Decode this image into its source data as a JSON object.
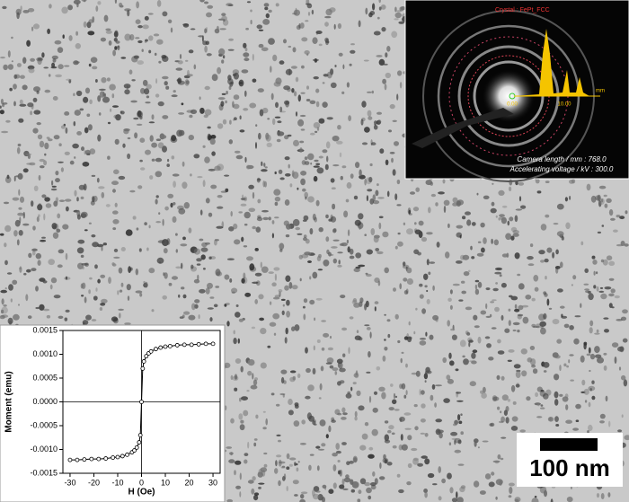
{
  "chart_data": {
    "type": "line",
    "xlabel": "H (Oe)",
    "ylabel": "Moment (emu)",
    "x": [
      -30,
      -27,
      -24,
      -21,
      -18,
      -15,
      -12,
      -10,
      -8,
      -6,
      -4,
      -3,
      -2,
      -1,
      -0.5,
      0,
      0.5,
      1,
      2,
      3,
      4,
      6,
      8,
      10,
      12,
      15,
      18,
      21,
      24,
      27,
      30
    ],
    "values": [
      -0.00122,
      -0.00122,
      -0.00121,
      -0.0012,
      -0.0012,
      -0.00119,
      -0.00117,
      -0.00116,
      -0.00114,
      -0.00111,
      -0.00106,
      -0.00102,
      -0.00096,
      -0.00085,
      -0.0007,
      0,
      0.0007,
      0.00085,
      0.00096,
      0.00102,
      0.00106,
      0.00111,
      0.00114,
      0.00116,
      0.00117,
      0.00119,
      0.0012,
      0.0012,
      0.00121,
      0.00122,
      0.00122
    ],
    "color": "#000000",
    "xlim": [
      -33,
      33
    ],
    "xticks": [
      -30,
      -20,
      -10,
      0,
      10,
      20,
      30
    ],
    "ylim": [
      -0.0015,
      0.0015
    ],
    "yticks": [
      -0.0015,
      {
        "value": -0.001,
        "label": "-0.0010"
      },
      -0.0005,
      {
        "value": 0,
        "label": "0.0000"
      },
      0.0005,
      {
        "value": 0.001,
        "label": "0.0010"
      },
      0.0015
    ]
  },
  "scale_bar": {
    "label": "100 nm"
  },
  "diffraction": {
    "crystal": "Crystal : FePt_FCC",
    "start": "0.00",
    "mark": "10.00",
    "unit": "mm",
    "camera": "Camera length / mm : 768.0",
    "voltage": "Accelerating voltage / kV : 300.0"
  }
}
